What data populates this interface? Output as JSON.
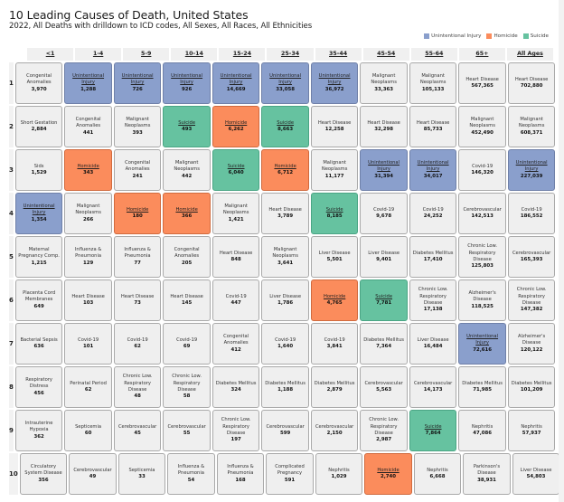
{
  "title": "10 Leading Causes of Death, United States",
  "subtitle": "2022, All Deaths with drilldown to ICD codes, All Sexes, All Races, All Ethnicities",
  "legend": [
    {
      "label": "Unintentional Injury",
      "key": "ui",
      "color": "#8a9fcc"
    },
    {
      "label": "Homicide",
      "key": "hom",
      "color": "#fb8c5c"
    },
    {
      "label": "Suicide",
      "key": "sui",
      "color": "#66c2a0"
    }
  ],
  "chart_data": {
    "type": "table",
    "title": "10 Leading Causes of Death, United States",
    "subtitle": "2022, All Deaths with drilldown to ICD codes, All Sexes, All Races, All Ethnicities",
    "columns": [
      "<1",
      "1-4",
      "5-9",
      "10-14",
      "15-24",
      "25-34",
      "35-44",
      "45-54",
      "55-64",
      "65+",
      "All Ages"
    ],
    "ranks": [
      "1",
      "2",
      "3",
      "4",
      "5",
      "6",
      "7",
      "8",
      "9",
      "10"
    ],
    "highlight_categories": {
      "Unintentional Injury": "ui",
      "Homicide": "hom",
      "Suicide": "sui"
    },
    "rows": [
      [
        {
          "cause": "Congenital Anomalies",
          "deaths": "3,970"
        },
        {
          "cause": "Unintentional Injury",
          "deaths": "1,288",
          "highlight": "ui"
        },
        {
          "cause": "Unintentional Injury",
          "deaths": "726",
          "highlight": "ui"
        },
        {
          "cause": "Unintentional Injury",
          "deaths": "926",
          "highlight": "ui"
        },
        {
          "cause": "Unintentional Injury",
          "deaths": "14,669",
          "highlight": "ui"
        },
        {
          "cause": "Unintentional Injury",
          "deaths": "33,058",
          "highlight": "ui"
        },
        {
          "cause": "Unintentional Injury",
          "deaths": "36,972",
          "highlight": "ui"
        },
        {
          "cause": "Malignant Neoplasms",
          "deaths": "33,363"
        },
        {
          "cause": "Malignant Neoplasms",
          "deaths": "105,133"
        },
        {
          "cause": "Heart Disease",
          "deaths": "567,365"
        },
        {
          "cause": "Heart Disease",
          "deaths": "702,880"
        }
      ],
      [
        {
          "cause": "Short Gestation",
          "deaths": "2,884"
        },
        {
          "cause": "Congenital Anomalies",
          "deaths": "441"
        },
        {
          "cause": "Malignant Neoplasms",
          "deaths": "393"
        },
        {
          "cause": "Suicide",
          "deaths": "493",
          "highlight": "sui"
        },
        {
          "cause": "Homicide",
          "deaths": "6,262",
          "highlight": "hom"
        },
        {
          "cause": "Suicide",
          "deaths": "8,663",
          "highlight": "sui"
        },
        {
          "cause": "Heart Disease",
          "deaths": "12,258"
        },
        {
          "cause": "Heart Disease",
          "deaths": "32,298"
        },
        {
          "cause": "Heart Disease",
          "deaths": "85,733"
        },
        {
          "cause": "Malignant Neoplasms",
          "deaths": "452,490"
        },
        {
          "cause": "Malignant Neoplasms",
          "deaths": "608,371"
        }
      ],
      [
        {
          "cause": "Sids",
          "deaths": "1,529"
        },
        {
          "cause": "Homicide",
          "deaths": "343",
          "highlight": "hom"
        },
        {
          "cause": "Congenital Anomalies",
          "deaths": "241"
        },
        {
          "cause": "Malignant Neoplasms",
          "deaths": "442"
        },
        {
          "cause": "Suicide",
          "deaths": "6,040",
          "highlight": "sui"
        },
        {
          "cause": "Homicide",
          "deaths": "6,712",
          "highlight": "hom"
        },
        {
          "cause": "Malignant Neoplasms",
          "deaths": "11,177"
        },
        {
          "cause": "Unintentional Injury",
          "deaths": "31,394",
          "highlight": "ui"
        },
        {
          "cause": "Unintentional Injury",
          "deaths": "34,017",
          "highlight": "ui"
        },
        {
          "cause": "Covid-19",
          "deaths": "146,320"
        },
        {
          "cause": "Unintentional Injury",
          "deaths": "227,039",
          "highlight": "ui"
        }
      ],
      [
        {
          "cause": "Unintentional Injury",
          "deaths": "1,354",
          "highlight": "ui"
        },
        {
          "cause": "Malignant Neoplasms",
          "deaths": "266"
        },
        {
          "cause": "Homicide",
          "deaths": "180",
          "highlight": "hom"
        },
        {
          "cause": "Homicide",
          "deaths": "366",
          "highlight": "hom"
        },
        {
          "cause": "Malignant Neoplasms",
          "deaths": "1,421"
        },
        {
          "cause": "Heart Disease",
          "deaths": "3,789"
        },
        {
          "cause": "Suicide",
          "deaths": "8,185",
          "highlight": "sui"
        },
        {
          "cause": "Covid-19",
          "deaths": "9,678"
        },
        {
          "cause": "Covid-19",
          "deaths": "24,252"
        },
        {
          "cause": "Cerebrovascular",
          "deaths": "142,513"
        },
        {
          "cause": "Covid-19",
          "deaths": "186,552"
        }
      ],
      [
        {
          "cause": "Maternal Pregnancy Comp.",
          "deaths": "1,215"
        },
        {
          "cause": "Influenza & Pneumonia",
          "deaths": "129"
        },
        {
          "cause": "Influenza & Pneumonia",
          "deaths": "77"
        },
        {
          "cause": "Congenital Anomalies",
          "deaths": "205"
        },
        {
          "cause": "Heart Disease",
          "deaths": "848"
        },
        {
          "cause": "Malignant Neoplasms",
          "deaths": "3,641"
        },
        {
          "cause": "Liver Disease",
          "deaths": "5,501"
        },
        {
          "cause": "Liver Disease",
          "deaths": "9,401"
        },
        {
          "cause": "Diabetes Mellitus",
          "deaths": "17,410"
        },
        {
          "cause": "Chronic Low. Respiratory Disease",
          "deaths": "125,803"
        },
        {
          "cause": "Cerebrovascular",
          "deaths": "165,393"
        }
      ],
      [
        {
          "cause": "Placenta Cord Membranes",
          "deaths": "649"
        },
        {
          "cause": "Heart Disease",
          "deaths": "103"
        },
        {
          "cause": "Heart Disease",
          "deaths": "73"
        },
        {
          "cause": "Heart Disease",
          "deaths": "145"
        },
        {
          "cause": "Covid-19",
          "deaths": "447"
        },
        {
          "cause": "Liver Disease",
          "deaths": "1,786"
        },
        {
          "cause": "Homicide",
          "deaths": "4,765",
          "highlight": "hom"
        },
        {
          "cause": "Suicide",
          "deaths": "7,781",
          "highlight": "sui"
        },
        {
          "cause": "Chronic Low. Respiratory Disease",
          "deaths": "17,138"
        },
        {
          "cause": "Alzheimer's Disease",
          "deaths": "118,525"
        },
        {
          "cause": "Chronic Low. Respiratory Disease",
          "deaths": "147,382"
        }
      ],
      [
        {
          "cause": "Bacterial Sepsis",
          "deaths": "636"
        },
        {
          "cause": "Covid-19",
          "deaths": "101"
        },
        {
          "cause": "Covid-19",
          "deaths": "62"
        },
        {
          "cause": "Covid-19",
          "deaths": "69"
        },
        {
          "cause": "Congenital Anomalies",
          "deaths": "412"
        },
        {
          "cause": "Covid-19",
          "deaths": "1,640"
        },
        {
          "cause": "Covid-19",
          "deaths": "3,841"
        },
        {
          "cause": "Diabetes Mellitus",
          "deaths": "7,364"
        },
        {
          "cause": "Liver Disease",
          "deaths": "16,484"
        },
        {
          "cause": "Unintentional Injury",
          "deaths": "72,616",
          "highlight": "ui"
        },
        {
          "cause": "Alzheimer's Disease",
          "deaths": "120,122"
        }
      ],
      [
        {
          "cause": "Respiratory Distress",
          "deaths": "456"
        },
        {
          "cause": "Perinatal Period",
          "deaths": "62"
        },
        {
          "cause": "Chronic Low. Respiratory Disease",
          "deaths": "48"
        },
        {
          "cause": "Chronic Low. Respiratory Disease",
          "deaths": "58"
        },
        {
          "cause": "Diabetes Mellitus",
          "deaths": "324"
        },
        {
          "cause": "Diabetes Mellitus",
          "deaths": "1,188"
        },
        {
          "cause": "Diabetes Mellitus",
          "deaths": "2,879"
        },
        {
          "cause": "Cerebrovascular",
          "deaths": "5,563"
        },
        {
          "cause": "Cerebrovascular",
          "deaths": "14,173"
        },
        {
          "cause": "Diabetes Mellitus",
          "deaths": "71,985"
        },
        {
          "cause": "Diabetes Mellitus",
          "deaths": "101,209"
        }
      ],
      [
        {
          "cause": "Intrauterine Hypoxia",
          "deaths": "362"
        },
        {
          "cause": "Septicemia",
          "deaths": "60"
        },
        {
          "cause": "Cerebrovascular",
          "deaths": "45"
        },
        {
          "cause": "Cerebrovascular",
          "deaths": "55"
        },
        {
          "cause": "Chronic Low. Respiratory Disease",
          "deaths": "197"
        },
        {
          "cause": "Cerebrovascular",
          "deaths": "599"
        },
        {
          "cause": "Cerebrovascular",
          "deaths": "2,150"
        },
        {
          "cause": "Chronic Low. Respiratory Disease",
          "deaths": "2,987"
        },
        {
          "cause": "Suicide",
          "deaths": "7,864",
          "highlight": "sui"
        },
        {
          "cause": "Nephritis",
          "deaths": "47,086"
        },
        {
          "cause": "Nephritis",
          "deaths": "57,937"
        }
      ],
      [
        {
          "cause": "Circulatory System Disease",
          "deaths": "356"
        },
        {
          "cause": "Cerebrovascular",
          "deaths": "49"
        },
        {
          "cause": "Septicemia",
          "deaths": "33"
        },
        {
          "cause": "Influenza & Pneumonia",
          "deaths": "54"
        },
        {
          "cause": "Influenza & Pneumonia",
          "deaths": "168"
        },
        {
          "cause": "Complicated Pregnancy",
          "deaths": "591"
        },
        {
          "cause": "Nephritis",
          "deaths": "1,029"
        },
        {
          "cause": "Homicide",
          "deaths": "2,740",
          "highlight": "hom"
        },
        {
          "cause": "Nephritis",
          "deaths": "6,668"
        },
        {
          "cause": "Parkinson's Disease",
          "deaths": "38,931"
        },
        {
          "cause": "Liver Disease",
          "deaths": "54,803"
        }
      ]
    ]
  }
}
